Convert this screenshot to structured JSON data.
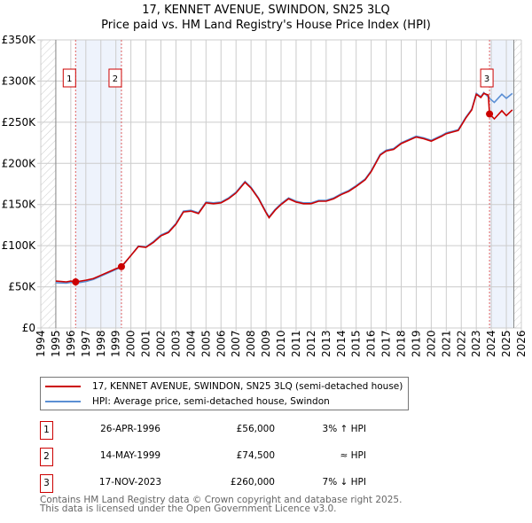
{
  "title": "17, KENNET AVENUE, SWINDON, SN25 3LQ",
  "subtitle": "Price paid vs. HM Land Registry's House Price Index (HPI)",
  "chart_data": {
    "type": "line",
    "ylim": [
      0,
      350000
    ],
    "xlim": [
      1994,
      2026
    ],
    "yticks": [
      {
        "v": 0,
        "label": "£0"
      },
      {
        "v": 50000,
        "label": "£50K"
      },
      {
        "v": 100000,
        "label": "£100K"
      },
      {
        "v": 150000,
        "label": "£150K"
      },
      {
        "v": 200000,
        "label": "£200K"
      },
      {
        "v": 250000,
        "label": "£250K"
      },
      {
        "v": 300000,
        "label": "£300K"
      },
      {
        "v": 350000,
        "label": "£350K"
      }
    ],
    "xticks": [
      "1994",
      "1995",
      "1996",
      "1997",
      "1998",
      "1999",
      "2000",
      "2001",
      "2002",
      "2003",
      "2004",
      "2005",
      "2006",
      "2007",
      "2008",
      "2009",
      "2010",
      "2011",
      "2012",
      "2013",
      "2014",
      "2015",
      "2016",
      "2017",
      "2018",
      "2019",
      "2020",
      "2021",
      "2022",
      "2023",
      "2024",
      "2025",
      "2026"
    ],
    "data_range": [
      1995,
      2025.5
    ],
    "series": [
      {
        "name": "17, KENNET AVENUE, SWINDON, SN25 3LQ (semi-detached house)",
        "color": "#cc0000",
        "x": [
          1995,
          1995.7,
          1996,
          1996.32,
          1997,
          1997.5,
          1998,
          1998.5,
          1999,
          1999.37,
          2000,
          2000.5,
          2001,
          2001.5,
          2002,
          2002.5,
          2003,
          2003.5,
          2004,
          2004.5,
          2005,
          2005.5,
          2006,
          2006.5,
          2007,
          2007.6,
          2008,
          2008.5,
          2009,
          2009.2,
          2009.6,
          2010,
          2010.5,
          2011,
          2011.5,
          2012,
          2012.5,
          2013,
          2013.5,
          2014,
          2014.5,
          2015,
          2015.6,
          2016,
          2016.6,
          2017,
          2017.5,
          2018,
          2018.5,
          2019,
          2019.5,
          2020,
          2020.7,
          2021,
          2021.8,
          2022.3,
          2022.7,
          2023,
          2023.3,
          2023.5,
          2023.8,
          2023.88,
          2024.2,
          2024.7,
          2025,
          2025.4
        ],
        "y": [
          57000,
          56000,
          57000,
          56000,
          58000,
          60000,
          64000,
          68000,
          72000,
          74500,
          88000,
          99000,
          98000,
          104000,
          112000,
          116000,
          126000,
          141000,
          142000,
          139000,
          152000,
          151000,
          152000,
          157000,
          164000,
          177000,
          170000,
          157000,
          140000,
          134000,
          143000,
          150000,
          157000,
          153000,
          151000,
          151000,
          154000,
          154000,
          157000,
          162000,
          166000,
          172000,
          180000,
          190000,
          210000,
          215000,
          217000,
          224000,
          228000,
          232000,
          230000,
          227000,
          233000,
          236000,
          240000,
          255000,
          265000,
          284000,
          280000,
          285000,
          283000,
          260000,
          254000,
          264000,
          258000,
          265000
        ]
      },
      {
        "name": "HPI: Average price, semi-detached house, Swindon",
        "color": "#5b8fd4",
        "x": [
          1995,
          1995.7,
          1996,
          1996.32,
          1997,
          1997.5,
          1998,
          1998.5,
          1999,
          1999.37,
          2000,
          2000.5,
          2001,
          2001.5,
          2002,
          2002.5,
          2003,
          2003.5,
          2004,
          2004.5,
          2005,
          2005.5,
          2006,
          2006.5,
          2007,
          2007.6,
          2008,
          2008.5,
          2009,
          2009.2,
          2009.6,
          2010,
          2010.5,
          2011,
          2011.5,
          2012,
          2012.5,
          2013,
          2013.5,
          2014,
          2014.5,
          2015,
          2015.6,
          2016,
          2016.6,
          2017,
          2017.5,
          2018,
          2018.5,
          2019,
          2019.5,
          2020,
          2020.7,
          2021,
          2021.8,
          2022.3,
          2022.7,
          2023,
          2023.3,
          2023.5,
          2023.88,
          2024.2,
          2024.7,
          2025,
          2025.4
        ],
        "y": [
          55000,
          54500,
          55500,
          54500,
          56500,
          59000,
          63000,
          67000,
          71000,
          74000,
          88000,
          99500,
          98500,
          105000,
          113000,
          117000,
          127000,
          142000,
          143000,
          140000,
          153000,
          152000,
          153000,
          158000,
          165000,
          178000,
          171000,
          158000,
          141000,
          135000,
          144000,
          151000,
          158000,
          154000,
          152000,
          152000,
          155000,
          155000,
          158000,
          163000,
          167000,
          173000,
          181000,
          191000,
          211000,
          216000,
          218000,
          225000,
          229000,
          233000,
          231000,
          228000,
          234000,
          237000,
          241000,
          256000,
          266000,
          285000,
          281000,
          286000,
          279000,
          274000,
          284000,
          279000,
          285000
        ]
      }
    ],
    "sales": [
      {
        "n": "1",
        "x": 1996.32,
        "y": 56000
      },
      {
        "n": "2",
        "x": 1999.37,
        "y": 74500
      },
      {
        "n": "3",
        "x": 2023.88,
        "y": 260000
      }
    ]
  },
  "legend": {
    "property": "17, KENNET AVENUE, SWINDON, SN25 3LQ (semi-detached house)",
    "hpi": "HPI: Average price, semi-detached house, Swindon"
  },
  "transactions": [
    {
      "n": "1",
      "date": "26-APR-1996",
      "price": "£56,000",
      "rel": "3% ↑ HPI"
    },
    {
      "n": "2",
      "date": "14-MAY-1999",
      "price": "£74,500",
      "rel": "≈ HPI"
    },
    {
      "n": "3",
      "date": "17-NOV-2023",
      "price": "£260,000",
      "rel": "7% ↓ HPI"
    }
  ],
  "footer": [
    "Contains HM Land Registry data © Crown copyright and database right 2025.",
    "This data is licensed under the Open Government Licence v3.0."
  ]
}
